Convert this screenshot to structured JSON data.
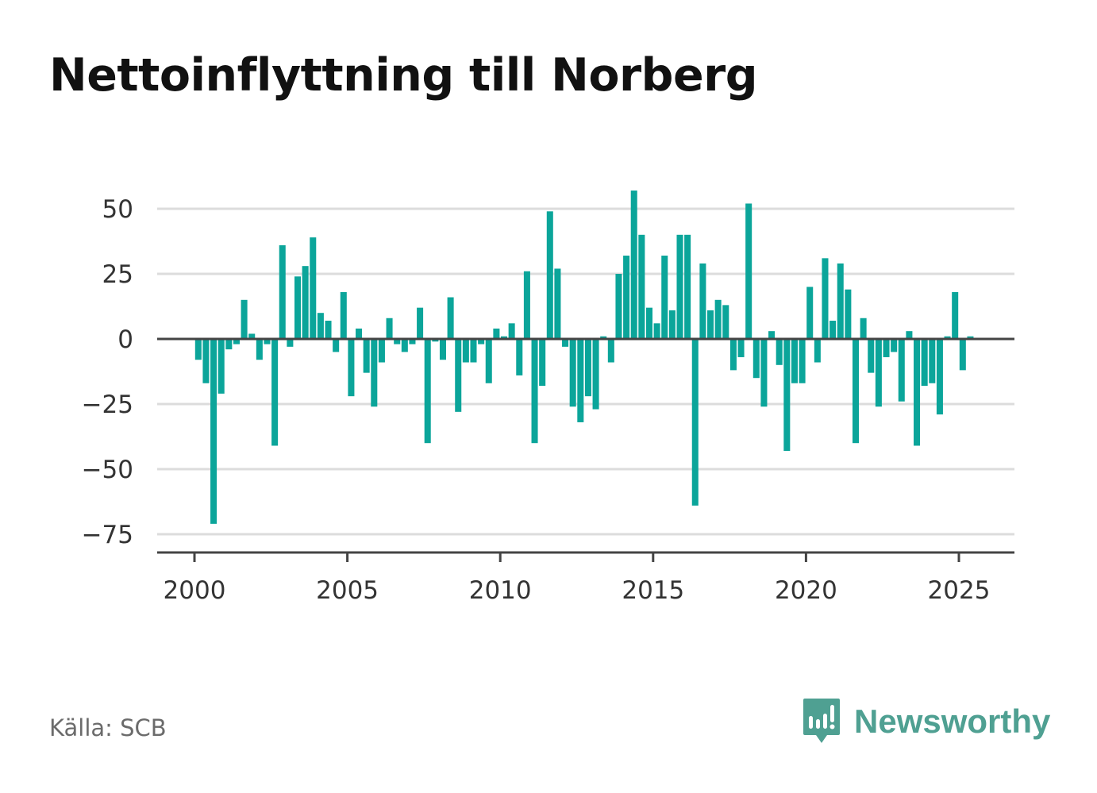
{
  "title": "Nettoinflyttning till Norberg",
  "source": "Källa: SCB",
  "brand": {
    "name": "Newsworthy",
    "icon": "bar-chart-speech-bubble-icon",
    "color": "#4fa092"
  },
  "chart_data": {
    "type": "bar",
    "title": "Nettoinflyttning till Norberg",
    "xlabel": "",
    "ylabel": "",
    "color": "#0ba59a",
    "grid": true,
    "legend": "none",
    "ylim": [
      -80,
      60
    ],
    "xlim": [
      1999.75,
      2026.8
    ],
    "yticks": [
      50,
      25,
      0,
      -25,
      -50,
      -75
    ],
    "ytick_labels": [
      "50",
      "25",
      "0",
      "−25",
      "−50",
      "−75"
    ],
    "xticks": [
      2000,
      2005,
      2010,
      2015,
      2020,
      2025
    ],
    "xtick_labels": [
      "2000",
      "2005",
      "2010",
      "2015",
      "2020",
      "2025"
    ],
    "series": [
      {
        "x": [
          "2000 Q1",
          "2000 Q2",
          "2000 Q3",
          "2000 Q4",
          "2001 Q1",
          "2001 Q2",
          "2001 Q3",
          "2001 Q4",
          "2002 Q1",
          "2002 Q2",
          "2002 Q3",
          "2002 Q4",
          "2003 Q1",
          "2003 Q2",
          "2003 Q3",
          "2003 Q4",
          "2004 Q1",
          "2004 Q2",
          "2004 Q3",
          "2004 Q4",
          "2005 Q1",
          "2005 Q2",
          "2005 Q3",
          "2005 Q4",
          "2006 Q1",
          "2006 Q2",
          "2006 Q3",
          "2006 Q4",
          "2007 Q1",
          "2007 Q2",
          "2007 Q3",
          "2007 Q4",
          "2008 Q1",
          "2008 Q2",
          "2008 Q3",
          "2008 Q4",
          "2009 Q1",
          "2009 Q2",
          "2009 Q3",
          "2009 Q4",
          "2010 Q1",
          "2010 Q2",
          "2010 Q3",
          "2010 Q4",
          "2011 Q1",
          "2011 Q2",
          "2011 Q3",
          "2011 Q4",
          "2012 Q1",
          "2012 Q2",
          "2012 Q3",
          "2012 Q4",
          "2013 Q1",
          "2013 Q2",
          "2013 Q3",
          "2013 Q4",
          "2014 Q1",
          "2014 Q2",
          "2014 Q3",
          "2014 Q4",
          "2015 Q1",
          "2015 Q2",
          "2015 Q3",
          "2015 Q4",
          "2016 Q1",
          "2016 Q2",
          "2016 Q3",
          "2016 Q4",
          "2017 Q1",
          "2017 Q2",
          "2017 Q3",
          "2017 Q4",
          "2018 Q1",
          "2018 Q2",
          "2018 Q3",
          "2018 Q4",
          "2019 Q1",
          "2019 Q2",
          "2019 Q3",
          "2019 Q4",
          "2020 Q1",
          "2020 Q2",
          "2020 Q3",
          "2020 Q4",
          "2021 Q1",
          "2021 Q2",
          "2021 Q3",
          "2021 Q4",
          "2022 Q1",
          "2022 Q2",
          "2022 Q3",
          "2022 Q4",
          "2023 Q1",
          "2023 Q2",
          "2023 Q3",
          "2023 Q4",
          "2024 Q1",
          "2024 Q2",
          "2024 Q3",
          "2024 Q4",
          "2025 Q1",
          "2025 Q2",
          "2025 Q3"
        ],
        "values": [
          -8,
          -17,
          -71,
          -21,
          -4,
          -2,
          15,
          2,
          -8,
          -2,
          -41,
          36,
          -3,
          24,
          28,
          39,
          10,
          7,
          -5,
          18,
          -22,
          4,
          -13,
          -26,
          -9,
          8,
          -2,
          -5,
          -2,
          12,
          -40,
          -1,
          -8,
          16,
          -28,
          -9,
          -9,
          -2,
          -17,
          4,
          1,
          6,
          -14,
          26,
          -40,
          -18,
          49,
          27,
          -3,
          -26,
          -32,
          -22,
          -27,
          1,
          -9,
          25,
          32,
          57,
          40,
          12,
          6,
          32,
          11,
          40,
          40,
          -64,
          29,
          11,
          15,
          13,
          -12,
          -7,
          52,
          -15,
          -26,
          3,
          -10,
          -43,
          -17,
          -17,
          20,
          -9,
          31,
          7,
          29,
          19,
          -40,
          8,
          -13,
          -26,
          -7,
          -5,
          -24,
          3,
          -41,
          -18,
          -17,
          -29,
          1,
          18,
          -12,
          1,
          0
        ]
      }
    ]
  }
}
